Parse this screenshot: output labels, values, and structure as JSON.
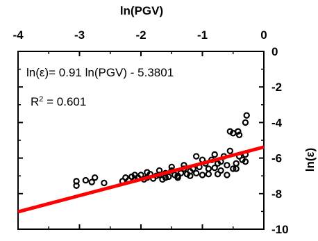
{
  "chart_data": {
    "type": "scatter",
    "title": "",
    "xlabel": "ln(PGV)",
    "ylabel": "ln(ε)",
    "x_axis_position": "top",
    "y_axis_position": "right",
    "xlim": [
      -4,
      0
    ],
    "ylim": [
      -10,
      0
    ],
    "xticks": [
      -4,
      -3,
      -2,
      -1,
      0
    ],
    "yticks": [
      0,
      -2,
      -4,
      -6,
      -8,
      -10
    ],
    "grid": false,
    "legend": "none",
    "marker": "open-circle",
    "marker_color": "#000000",
    "line_color": "#ff0000",
    "fit_line": {
      "slope": 0.91,
      "intercept": -5.3801
    },
    "annotations": {
      "equation": "ln(ε)= 0.91 ln(PGV) - 5.3801",
      "r2_base": "R",
      "r2_sup": "2",
      "r2_rest": " = 0.601"
    },
    "points": [
      [
        -3.05,
        -7.3
      ],
      [
        -3.05,
        -7.55
      ],
      [
        -2.9,
        -7.25
      ],
      [
        -2.8,
        -7.35
      ],
      [
        -2.75,
        -7.1
      ],
      [
        -2.6,
        -7.4
      ],
      [
        -2.3,
        -7.3
      ],
      [
        -2.25,
        -7.1
      ],
      [
        -2.2,
        -7.25
      ],
      [
        -2.15,
        -7.05
      ],
      [
        -2.1,
        -7.2
      ],
      [
        -2.05,
        -7.1
      ],
      [
        -2.0,
        -6.95
      ],
      [
        -1.95,
        -7.2
      ],
      [
        -1.9,
        -7.1
      ],
      [
        -1.85,
        -6.9
      ],
      [
        -1.8,
        -7.15
      ],
      [
        -1.75,
        -7.0
      ],
      [
        -1.7,
        -6.95
      ],
      [
        -1.65,
        -7.2
      ],
      [
        -1.6,
        -6.85
      ],
      [
        -1.55,
        -7.05
      ],
      [
        -1.5,
        -6.7
      ],
      [
        -1.45,
        -6.95
      ],
      [
        -1.4,
        -7.1
      ],
      [
        -1.35,
        -6.85
      ],
      [
        -1.3,
        -6.6
      ],
      [
        -1.25,
        -6.9
      ],
      [
        -1.2,
        -6.75
      ],
      [
        -1.15,
        -6.6
      ],
      [
        -1.1,
        -6.85
      ],
      [
        -1.05,
        -6.5
      ],
      [
        -1.0,
        -6.95
      ],
      [
        -0.95,
        -6.3
      ],
      [
        -0.9,
        -6.6
      ],
      [
        -0.85,
        -6.1
      ],
      [
        -0.8,
        -6.55
      ],
      [
        -0.75,
        -6.9
      ],
      [
        -0.7,
        -6.2
      ],
      [
        -0.65,
        -5.9
      ],
      [
        -0.6,
        -6.4
      ],
      [
        -0.55,
        -5.6
      ],
      [
        -0.5,
        -6.6
      ],
      [
        -0.45,
        -6.3
      ],
      [
        -0.4,
        -5.9
      ],
      [
        -0.35,
        -6.1
      ],
      [
        -0.3,
        -5.8
      ],
      [
        -0.3,
        -6.2
      ],
      [
        -0.42,
        -4.5
      ],
      [
        -0.4,
        -4.7
      ],
      [
        -0.5,
        -4.6
      ],
      [
        -0.3,
        -4.0
      ],
      [
        -0.28,
        -3.6
      ],
      [
        -0.55,
        -4.5
      ],
      [
        -0.7,
        -6.7
      ],
      [
        -1.0,
        -6.1
      ],
      [
        -1.1,
        -5.9
      ],
      [
        -0.8,
        -5.8
      ],
      [
        -0.9,
        -6.9
      ],
      [
        -0.45,
        -6.6
      ],
      [
        -1.3,
        -6.4
      ],
      [
        -1.5,
        -6.5
      ],
      [
        -1.7,
        -6.7
      ],
      [
        -1.9,
        -6.8
      ],
      [
        -2.1,
        -6.95
      ],
      [
        -0.6,
        -6.95
      ],
      [
        -0.75,
        -6.3
      ],
      [
        -1.2,
        -7.0
      ],
      [
        -1.4,
        -7.0
      ],
      [
        -1.6,
        -7.1
      ]
    ]
  }
}
